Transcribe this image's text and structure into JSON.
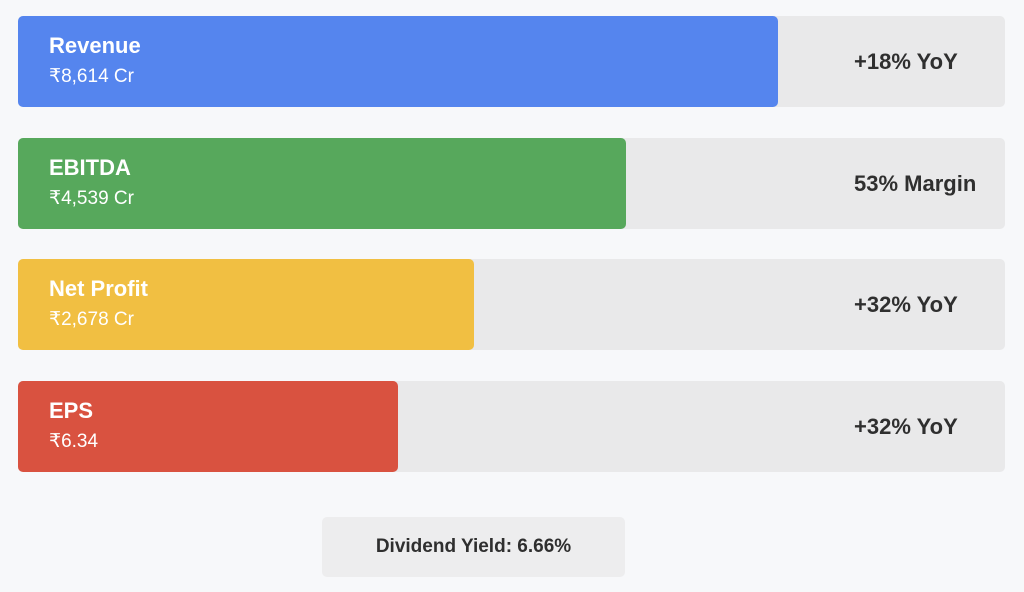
{
  "chart_data": {
    "type": "bar",
    "orientation": "horizontal",
    "categories": [
      "Revenue",
      "EBITDA",
      "Net Profit",
      "EPS"
    ],
    "value_labels": [
      "₹8,614 Cr",
      "₹4,539 Cr",
      "₹2,678 Cr",
      "₹6.34"
    ],
    "notes": [
      "+18% YoY",
      "53% Margin",
      "+32% YoY",
      "+32% YoY"
    ],
    "fill_fractions": [
      0.77,
      0.616,
      0.462,
      0.385
    ],
    "colors": [
      "#5585ee",
      "#57a85c",
      "#f1bf42",
      "#d95240"
    ],
    "grid": false,
    "legend": "none"
  },
  "footer": {
    "dividend_yield": "Dividend Yield: 6.66%"
  }
}
